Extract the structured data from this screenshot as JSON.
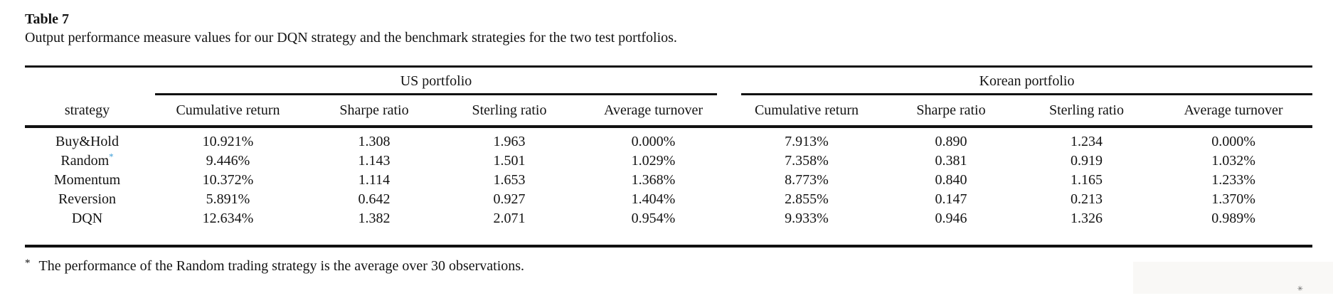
{
  "title": "Table 7",
  "caption": "Output performance measure values for our DQN strategy and the benchmark strategies for the two test portfolios.",
  "table": {
    "group_headers": {
      "us": "US portfolio",
      "kr": "Korean portfolio"
    },
    "strategy_header": "strategy",
    "column_headers": [
      "Cumulative return",
      "Sharpe ratio",
      "Sterling ratio",
      "Average turnover"
    ],
    "rows": [
      {
        "strategy": "Buy&Hold",
        "marker": "",
        "bold_strategy": false,
        "cells": [
          "10.921%",
          "1.308",
          "1.963",
          "0.000%",
          "7.913%",
          "0.890",
          "1.234",
          "0.000%"
        ],
        "bold_cells": [
          7
        ]
      },
      {
        "strategy": "Random",
        "marker": "*",
        "bold_strategy": false,
        "cells": [
          "9.446%",
          "1.143",
          "1.501",
          "1.029%",
          "7.358%",
          "0.381",
          "0.919",
          "1.032%"
        ],
        "bold_cells": []
      },
      {
        "strategy": "Momentum",
        "marker": "",
        "bold_strategy": false,
        "cells": [
          "10.372%",
          "1.114",
          "1.653",
          "1.368%",
          "8.773%",
          "0.840",
          "1.165",
          "1.233%"
        ],
        "bold_cells": []
      },
      {
        "strategy": "Reversion",
        "marker": "",
        "bold_strategy": false,
        "cells": [
          "5.891%",
          "0.642",
          "0.927",
          "1.404%",
          "2.855%",
          "0.147",
          "0.213",
          "1.370%"
        ],
        "bold_cells": []
      },
      {
        "strategy": "DQN",
        "marker": "",
        "bold_strategy": true,
        "cells": [
          "12.634%",
          "1.382",
          "2.071",
          "0.954%",
          "9.933%",
          "0.946",
          "1.326",
          "0.989%"
        ],
        "bold_cells": [
          0,
          1,
          2,
          3,
          4,
          5,
          6,
          7
        ]
      }
    ]
  },
  "footnote": {
    "marker": "*",
    "text": "The performance of the Random trading strategy is the average over 30 observations."
  },
  "watermark_mark": "✳",
  "colors": {
    "text": "#131313",
    "rule": "#111111",
    "marker_blue": "#3f9fd8"
  }
}
